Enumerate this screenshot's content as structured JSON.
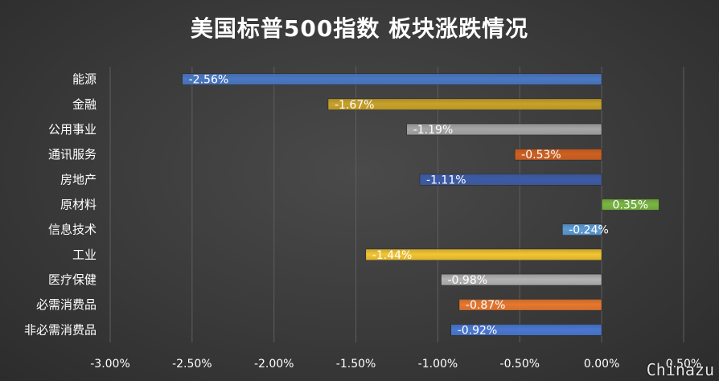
{
  "chart_data": {
    "type": "bar",
    "orientation": "horizontal",
    "title": "美国标普500指数 板块涨跌情况",
    "categories": [
      "能源",
      "金融",
      "公用事业",
      "通讯服务",
      "房地产",
      "原材料",
      "信息技术",
      "工业",
      "医疗保健",
      "必需消费品",
      "非必需消费品"
    ],
    "values": [
      -2.56,
      -1.67,
      -1.19,
      -0.53,
      -1.11,
      0.35,
      -0.24,
      -1.44,
      -0.98,
      -0.87,
      -0.92
    ],
    "data_labels": [
      "-2.56%",
      "-1.67%",
      "-1.19%",
      "-0.53%",
      "-1.11%",
      "0.35%",
      "-0.24%",
      "-1.44%",
      "-0.98%",
      "-0.87%",
      "-0.92%"
    ],
    "bar_colors": [
      "#4a78c4",
      "#c9a227",
      "#a6a6a6",
      "#d0601f",
      "#3c5ba8",
      "#78b640",
      "#5b9bd5",
      "#f2c530",
      "#b3b3b3",
      "#e8782e",
      "#4878d4"
    ],
    "x_ticks": [
      -3.0,
      -2.5,
      -2.0,
      -1.5,
      -1.0,
      -0.5,
      0.0,
      0.5
    ],
    "x_tick_labels": [
      "-3.00%",
      "-2.50%",
      "-2.00%",
      "-1.50%",
      "-1.00%",
      "-0.50%",
      "0.00%",
      "0.50%"
    ],
    "xlim": [
      -3.0,
      0.5
    ],
    "grid": true,
    "legend": false
  },
  "watermark": "Chinazu"
}
